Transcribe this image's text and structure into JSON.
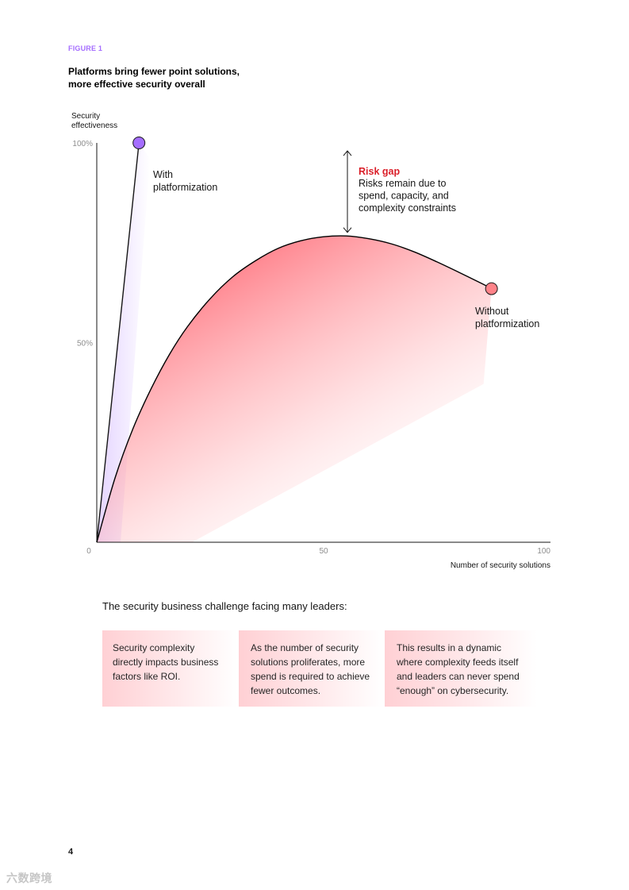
{
  "figure_label": "FIGURE 1",
  "figure_title_line1": "Platforms bring fewer point solutions,",
  "figure_title_line2": "more effective security overall",
  "colors": {
    "accent_purple": "#a56eff",
    "accent_red": "#da1e28",
    "marker_red": "#ff8389",
    "fill_red": "#ff7d87"
  },
  "chart_data": {
    "type": "line",
    "xlabel": "Number of security solutions",
    "ylabel": [
      "Security",
      "effectiveness"
    ],
    "xlim": [
      0,
      100
    ],
    "ylim": [
      0,
      100
    ],
    "x_ticks": [
      {
        "value": 0,
        "label": "0"
      },
      {
        "value": 50,
        "label": "50"
      },
      {
        "value": 100,
        "label": "100"
      }
    ],
    "y_ticks": [
      {
        "value": 50,
        "label": "50%"
      },
      {
        "value": 100,
        "label": "100%"
      }
    ],
    "grid": false,
    "series": [
      {
        "name": "With platformization",
        "label_lines": [
          "With",
          "platformization"
        ],
        "color": "#a56eff",
        "points": [
          [
            0,
            0
          ],
          [
            9.3,
            100
          ]
        ]
      },
      {
        "name": "Without platformization",
        "label_lines": [
          "Without",
          "platformization"
        ],
        "color": "#ff8389",
        "points": [
          [
            0,
            0
          ],
          [
            4,
            16
          ],
          [
            8,
            28.5
          ],
          [
            12,
            38.5
          ],
          [
            16,
            47
          ],
          [
            20,
            54
          ],
          [
            25,
            61
          ],
          [
            30,
            66.5
          ],
          [
            35,
            70.5
          ],
          [
            40,
            73.6
          ],
          [
            45,
            75.5
          ],
          [
            50,
            76.5
          ],
          [
            55,
            76.7
          ],
          [
            60,
            76
          ],
          [
            65,
            74.7
          ],
          [
            70,
            72.7
          ],
          [
            75,
            70.2
          ],
          [
            80,
            67.5
          ],
          [
            85,
            64.7
          ],
          [
            87,
            63.5
          ]
        ]
      }
    ],
    "annotation": {
      "x": 55,
      "y_range": [
        77,
        98
      ],
      "title": "Risk gap",
      "lines": [
        "Risks remain due to",
        "spend, capacity, and",
        "complexity constraints"
      ]
    }
  },
  "challenge_heading": "The security business challenge facing many leaders:",
  "cards": [
    {
      "lines": [
        "Security complexity",
        "directly impacts business",
        "factors like ROI."
      ]
    },
    {
      "lines": [
        "As the number of security",
        "solutions proliferates, more",
        "spend is required to achieve",
        "fewer outcomes."
      ]
    },
    {
      "lines": [
        "This results in a dynamic",
        "where complexity feeds itself",
        "and leaders can never spend",
        "“enough” on cybersecurity."
      ]
    }
  ],
  "page_number": "4",
  "watermark": "六数跨境"
}
